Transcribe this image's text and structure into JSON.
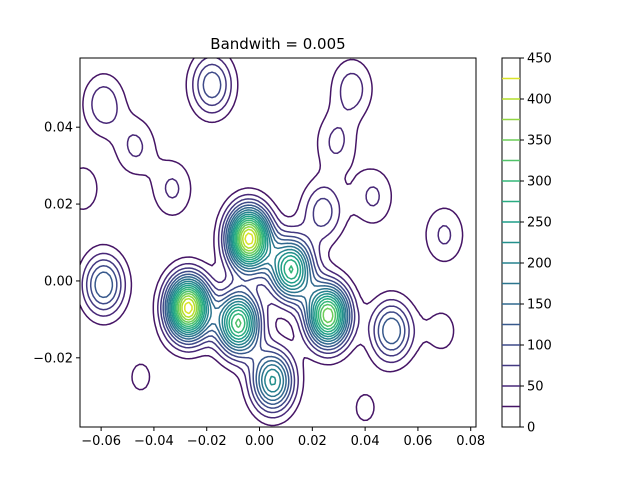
{
  "chart_data": {
    "type": "contour",
    "title": "Bandwith = 0.005",
    "xlabel": "",
    "ylabel": "",
    "xlim": [
      -0.068,
      0.082
    ],
    "ylim": [
      -0.038,
      0.058
    ],
    "x_ticks": [
      -0.06,
      -0.04,
      -0.02,
      0.0,
      0.02,
      0.04,
      0.06,
      0.08
    ],
    "x_tick_labels": [
      "−0.06",
      "−0.04",
      "−0.02",
      "0.00",
      "0.02",
      "0.04",
      "0.06",
      "0.08"
    ],
    "y_ticks": [
      -0.02,
      0.0,
      0.02,
      0.04
    ],
    "y_tick_labels": [
      "−0.02",
      "0.00",
      "0.02",
      "0.04"
    ],
    "colormap": "viridis",
    "contour_levels": [
      0,
      25,
      50,
      75,
      100,
      125,
      150,
      175,
      200,
      225,
      250,
      275,
      300,
      325,
      350,
      375,
      400,
      425,
      450
    ],
    "colorbar": {
      "range": [
        0,
        450
      ],
      "tick_values": [
        0,
        50,
        100,
        150,
        200,
        250,
        300,
        350,
        400,
        450
      ],
      "tick_labels": [
        "0",
        "50",
        "100",
        "150",
        "200",
        "250",
        "300",
        "350",
        "400",
        "450"
      ]
    },
    "peaks": [
      {
        "x": -0.027,
        "y": -0.007,
        "value": 440
      },
      {
        "x": -0.004,
        "y": 0.011,
        "value": 440
      },
      {
        "x": -0.008,
        "y": -0.011,
        "value": 330
      },
      {
        "x": 0.026,
        "y": -0.009,
        "value": 370
      },
      {
        "x": 0.005,
        "y": -0.026,
        "value": 230
      },
      {
        "x": 0.012,
        "y": 0.003,
        "value": 300
      },
      {
        "x": -0.059,
        "y": -0.001,
        "value": 150
      },
      {
        "x": 0.05,
        "y": -0.013,
        "value": 150
      },
      {
        "x": 0.024,
        "y": 0.018,
        "value": 90
      },
      {
        "x": -0.018,
        "y": 0.051,
        "value": 120
      },
      {
        "x": -0.059,
        "y": 0.046,
        "value": 70
      },
      {
        "x": 0.035,
        "y": 0.05,
        "value": 65
      },
      {
        "x": -0.047,
        "y": 0.035,
        "value": 55
      },
      {
        "x": 0.029,
        "y": 0.036,
        "value": 55
      },
      {
        "x": -0.033,
        "y": 0.024,
        "value": 55
      },
      {
        "x": 0.043,
        "y": 0.022,
        "value": 55
      },
      {
        "x": 0.07,
        "y": 0.012,
        "value": 55
      },
      {
        "x": -0.067,
        "y": 0.024,
        "value": 40
      },
      {
        "x": 0.069,
        "y": -0.013,
        "value": 35
      },
      {
        "x": -0.045,
        "y": -0.025,
        "value": 30
      },
      {
        "x": 0.04,
        "y": -0.033,
        "value": 30
      }
    ]
  }
}
